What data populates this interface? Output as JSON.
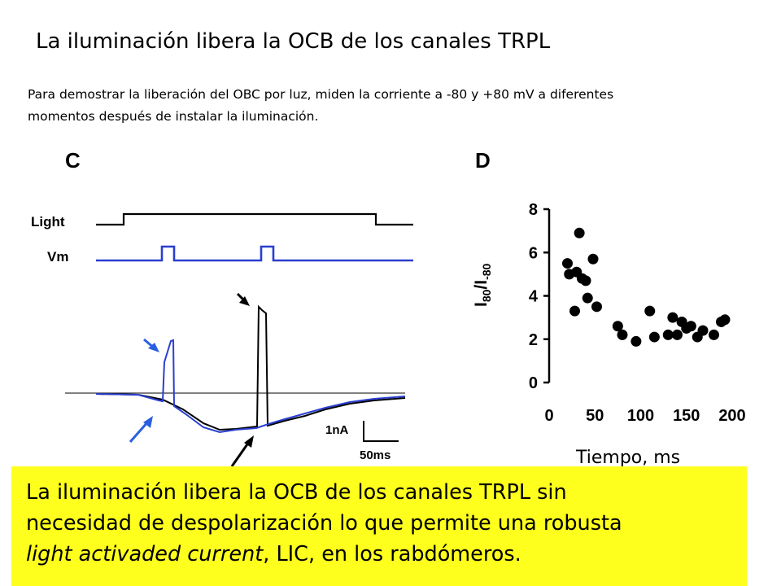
{
  "title": "La iluminación libera la OCB de los canales TRPL",
  "subtitle": "Para demostrar la liberación del OBC por luz, miden la corriente a -80 y +80 mV a diferentes momentos después de instalar la iluminación.",
  "panel_c": {
    "letter": "C",
    "light_label": "Light",
    "vm_label": "Vm",
    "scale_current": "1nA",
    "scale_time": "50ms",
    "colors": {
      "trace_black": "#000000",
      "trace_blue": "#2a3fd0",
      "arrow_blue": "#2a5fe0"
    }
  },
  "panel_d": {
    "letter": "D",
    "y_tick_labels": [
      "0",
      "2",
      "4",
      "6",
      "8"
    ],
    "x_tick_labels": [
      "0",
      "50",
      "100",
      "150",
      "200"
    ]
  },
  "chart_data": {
    "type": "scatter",
    "x": [
      20,
      22,
      28,
      30,
      33,
      36,
      40,
      42,
      48,
      52,
      75,
      80,
      95,
      110,
      115,
      130,
      135,
      140,
      145,
      150,
      155,
      162,
      168,
      180,
      188,
      192
    ],
    "y": [
      5.5,
      5.0,
      3.3,
      5.1,
      6.9,
      4.8,
      4.7,
      3.9,
      5.7,
      3.5,
      2.6,
      2.2,
      1.9,
      3.3,
      2.1,
      2.2,
      3.0,
      2.2,
      2.8,
      2.5,
      2.6,
      2.1,
      2.4,
      2.2,
      2.8,
      2.9
    ],
    "xlim": [
      0,
      200
    ],
    "ylim": [
      0,
      8
    ],
    "ylabel": "I80/I-80",
    "xlabel": "Tiempo, ms",
    "grid": false
  },
  "time_label": "Tiempo, ms",
  "callout": {
    "line1": "La iluminación libera la OCB de los canales TRPL sin",
    "line2": "necesidad de despolarización lo que permite una robusta",
    "line3_italic": "light activaded current",
    "line3_rest": ", LIC, en los rabdómeros.",
    "background": "#ffff1e"
  }
}
